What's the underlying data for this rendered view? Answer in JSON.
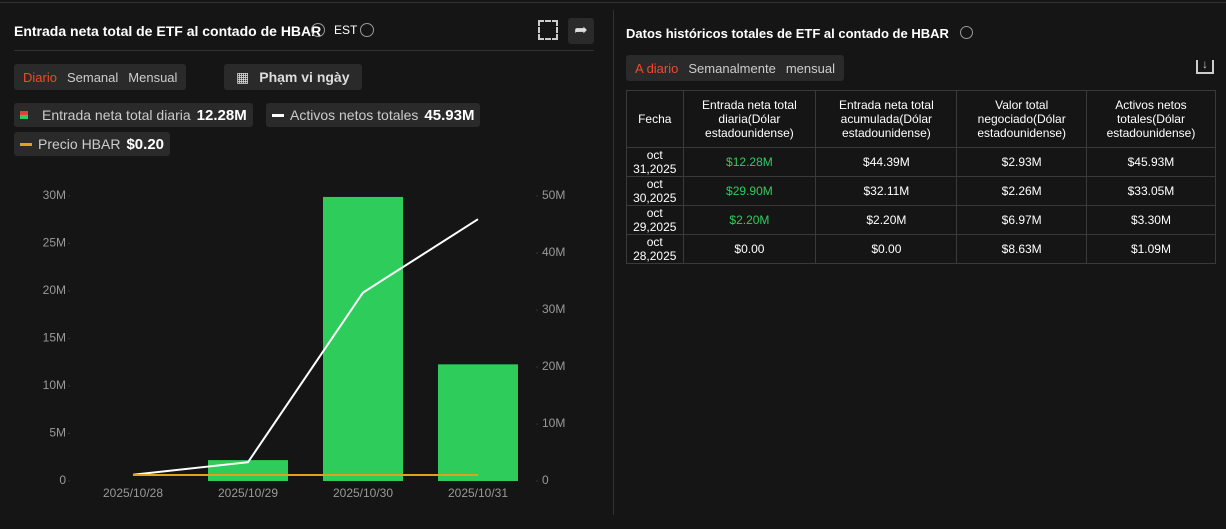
{
  "left": {
    "title": "Entrada neta total de ETF al contado de HBAR",
    "timezone": "EST",
    "tabs": [
      "Diario",
      "Semanal",
      "Mensual"
    ],
    "date_button": "Phạm vi ngày",
    "legend_values": [
      "12.28M",
      "45.93M",
      "$0.20"
    ]
  },
  "chart_data": {
    "type": "bar",
    "categories": [
      "2025/10/28",
      "2025/10/29",
      "2025/10/30",
      "2025/10/31"
    ],
    "series": [
      {
        "name": "Entrada neta total diaria",
        "type": "bar",
        "color": "#2ecc5a",
        "values": [
          0,
          2.2,
          29.9,
          12.28
        ]
      },
      {
        "name": "Activos netos totales",
        "type": "line",
        "color": "#ffffff",
        "axis": "y2",
        "values": [
          1.09,
          3.3,
          33.05,
          45.93
        ]
      },
      {
        "name": "Precio HBAR",
        "type": "line",
        "color": "#e0a020",
        "values": [
          0.2,
          0.2,
          0.2,
          0.2
        ]
      }
    ],
    "ylim": [
      0,
      30
    ],
    "yticks": [
      0,
      {
        "value": 5,
        "label": "5M"
      },
      {
        "value": 10,
        "label": "10M"
      },
      {
        "value": 15,
        "label": "15M"
      },
      {
        "value": 20,
        "label": "20M"
      },
      {
        "value": 25,
        "label": "25M"
      },
      {
        "value": 30,
        "label": "30M"
      }
    ],
    "y2lim": [
      0,
      50
    ],
    "y2ticks": [
      0,
      {
        "value": 10,
        "label": "10M"
      },
      {
        "value": 20,
        "label": "20M"
      },
      {
        "value": 30,
        "label": "30M"
      },
      {
        "value": 40,
        "label": "40M"
      },
      {
        "value": 50,
        "label": "50M"
      }
    ]
  },
  "right": {
    "title": "Datos históricos totales de ETF al contado de HBAR",
    "tabs": [
      "A diario",
      "Semanalmente",
      "mensual"
    ],
    "table": {
      "columns": [
        "Fecha",
        "Entrada neta total diaria(Dólar estadounidense)",
        "Entrada neta total acumulada(Dólar estadounidense)",
        "Valor total negociado(Dólar estadounidense)",
        "Activos netos totales(Dólar estadounidense)"
      ],
      "rows": [
        [
          "oct 31,2025",
          "$12.28M",
          "$44.39M",
          "$2.93M",
          "$45.93M"
        ],
        [
          "oct 30,2025",
          "$29.90M",
          "$32.11M",
          "$2.26M",
          "$33.05M"
        ],
        [
          "oct 29,2025",
          "$2.20M",
          "$2.20M",
          "$6.97M",
          "$3.30M"
        ],
        [
          "oct 28,2025",
          "$0.00",
          "$0.00",
          "$8.63M",
          "$1.09M"
        ]
      ]
    }
  }
}
